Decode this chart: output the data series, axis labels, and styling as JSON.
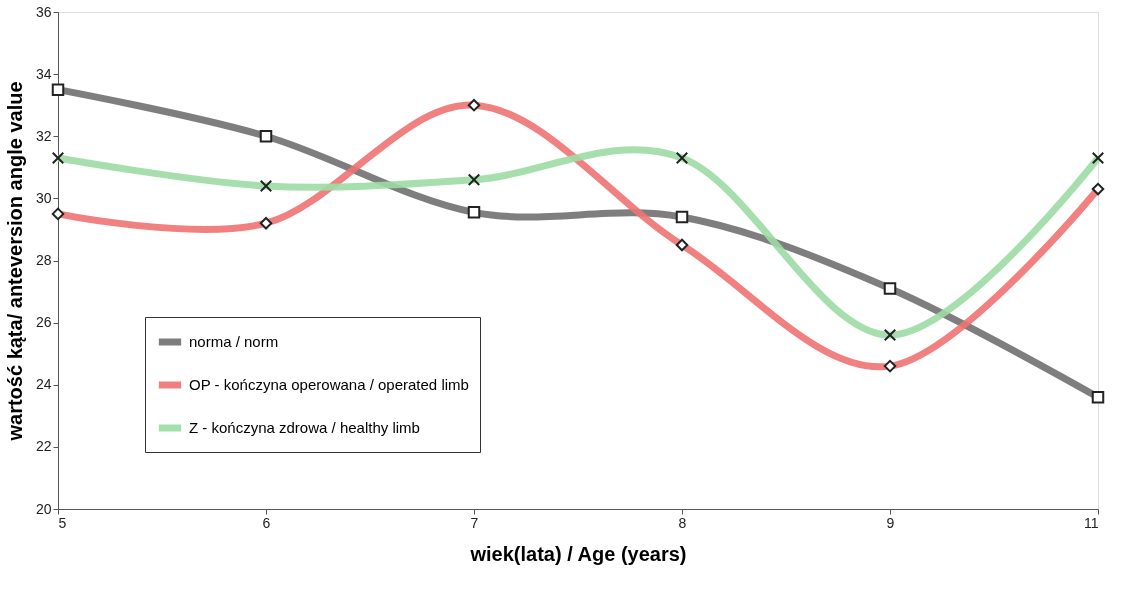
{
  "chart_data": {
    "type": "line",
    "xlabel": "wiek(lata) / Age (years)",
    "ylabel": "wartość kąta/ anteversion angle value",
    "categories": [
      "5",
      "6",
      "7",
      "8",
      "9",
      "11"
    ],
    "ylim": [
      20,
      36
    ],
    "yticks": [
      20,
      22,
      24,
      26,
      28,
      30,
      32,
      34,
      36
    ],
    "grid": false,
    "legend": "left",
    "line_style": "solid",
    "series": [
      {
        "name": "norma / norm",
        "color": "#707070",
        "marker": "square",
        "values": [
          33.5,
          32.0,
          29.55,
          29.4,
          27.1,
          23.6
        ]
      },
      {
        "name": "OP - kończyna operowana / operated limb",
        "color": "#f07272",
        "marker": "diamond",
        "values": [
          29.5,
          29.2,
          33.0,
          28.5,
          24.6,
          30.3
        ]
      },
      {
        "name": "Z - kończyna zdrowa / healthy limb",
        "color": "#9cdca4",
        "marker": "cross",
        "values": [
          31.3,
          30.4,
          30.6,
          31.3,
          25.6,
          31.3
        ]
      }
    ]
  }
}
